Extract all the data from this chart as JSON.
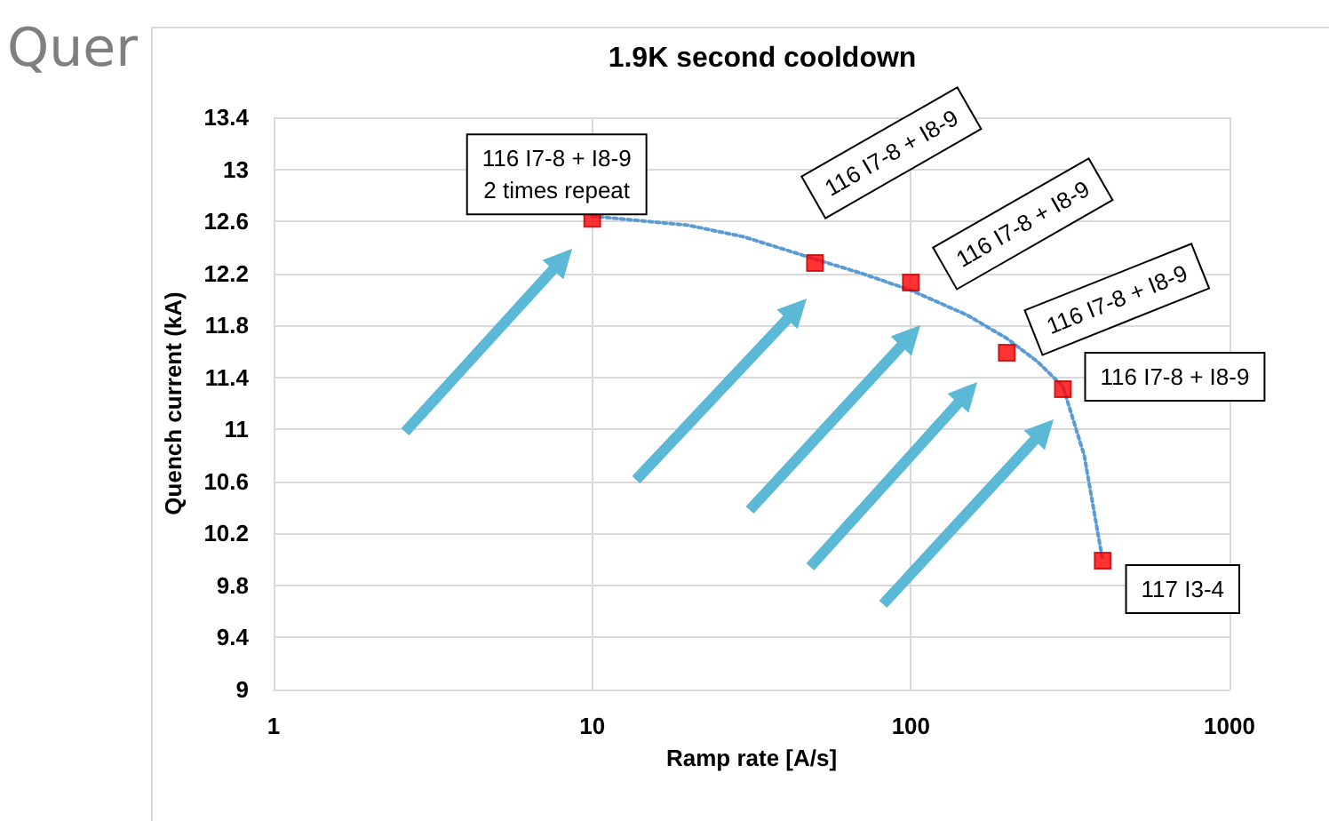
{
  "chart_data": {
    "type": "scatter",
    "title": "1.9K second cooldown",
    "xlabel": "Ramp rate [A/s]",
    "ylabel": "Quench current (kA)",
    "log": "x",
    "xlim": [
      1,
      1000
    ],
    "xticks": [
      1,
      10,
      100,
      1000
    ],
    "ylim": [
      9,
      13.4
    ],
    "yticks": [
      9,
      9.4,
      9.8,
      10.2,
      10.6,
      11,
      11.4,
      11.8,
      12.2,
      12.6,
      13,
      13.4
    ],
    "grid": true,
    "marker": "square",
    "series": [
      {
        "color": "#ff0000",
        "x": [
          10,
          50,
          100,
          200,
          300,
          400
        ],
        "values": [
          12.62,
          12.28,
          12.13,
          11.59,
          11.31,
          9.99
        ]
      },
      {
        "type": "line",
        "color": "#5b9bd5",
        "marker": "none",
        "line_style": "dotted",
        "x": [
          10,
          20,
          30,
          50,
          70,
          100,
          150,
          200,
          250,
          300,
          350,
          400
        ],
        "values": [
          12.64,
          12.57,
          12.48,
          12.31,
          12.2,
          12.07,
          11.88,
          11.7,
          11.52,
          11.33,
          10.8,
          9.99
        ]
      }
    ],
    "annotations": [
      "Quer",
      {
        "text": "116 I7-8 + I8-9\n2 times repeat",
        "x": 10,
        "y": 12.62
      },
      {
        "text": "116 I7-8 + I8-9",
        "x": 50,
        "y": 12.28
      },
      {
        "text": "116 I7-8 + I8-9",
        "x": 100,
        "y": 12.13
      },
      {
        "text": "116 I7-8 + I8-9",
        "x": 200,
        "y": 11.59
      },
      {
        "text": "116 I7-8 + I8-9",
        "x": 300,
        "y": 11.31
      },
      {
        "text": "117 I3-4",
        "x": 400,
        "y": 9.99
      }
    ]
  }
}
